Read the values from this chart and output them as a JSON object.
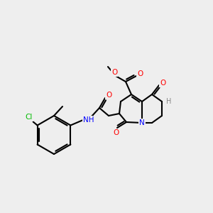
{
  "bg_color": "#eeeeee",
  "bond_color": "#000000",
  "atom_colors": {
    "O": "#ff0000",
    "N": "#0000ff",
    "Cl": "#00bb00",
    "H": "#888888",
    "C": "#000000"
  },
  "figsize": [
    3.0,
    3.0
  ],
  "dpi": 100,
  "lw": 1.5,
  "fontsize": 7.5
}
